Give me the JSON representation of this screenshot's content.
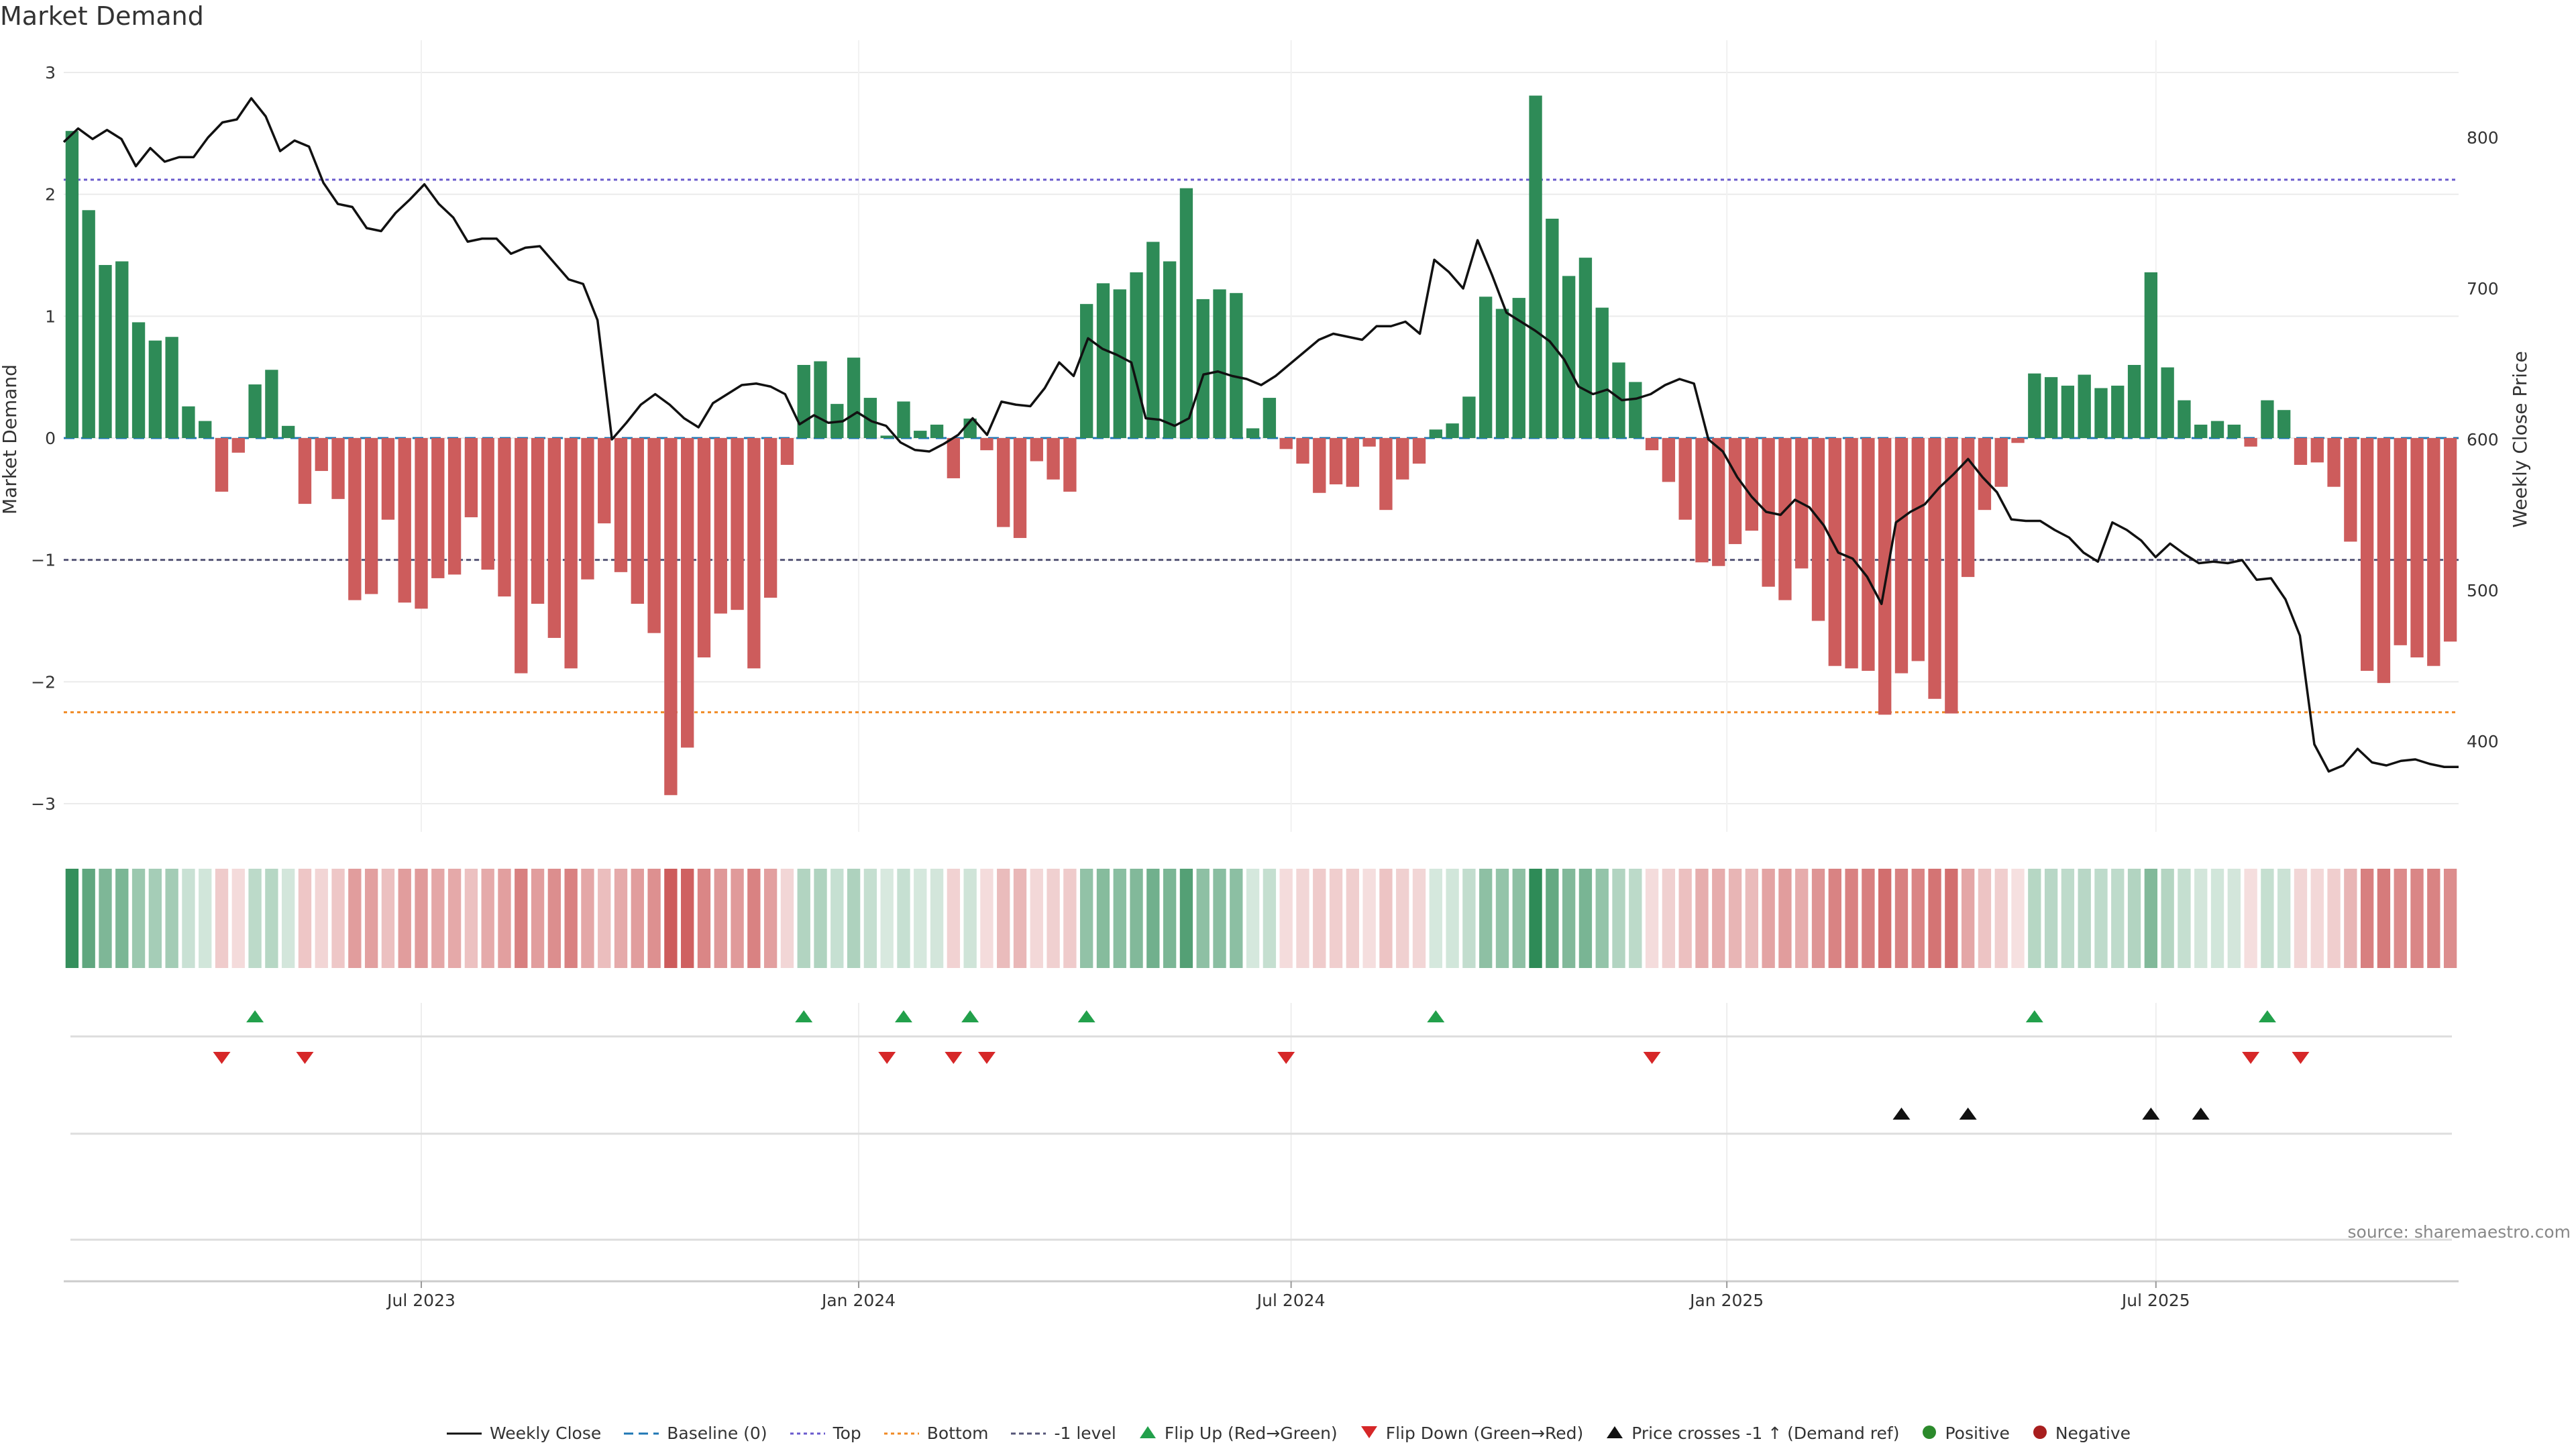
{
  "title": "Market Demand",
  "source": "source: sharemaestro.com",
  "colors": {
    "positive": "#2e8b57",
    "negative": "#cd5c5c",
    "price": "#111111",
    "top": "#6a5acd",
    "bottom": "#f08a24",
    "minus1": "#555577",
    "baseline": "#1f77b4",
    "flipUp": "#22a04b",
    "flipDown": "#d62728",
    "cross": "#111111"
  },
  "chart_data": {
    "type": "bar",
    "title": "Market Demand",
    "ylabel": "Market Demand",
    "ylabel_right": "Weekly Close Price",
    "ylim": [
      -3.2,
      3.0
    ],
    "ylim_right": [
      350,
      840
    ],
    "yticks": [
      3,
      2,
      1,
      0,
      -1,
      -2,
      -3
    ],
    "yticks_labels": [
      "3",
      "2",
      "1",
      "0",
      "−1",
      "−2",
      "−3"
    ],
    "yticks_right": [
      800,
      700,
      600,
      500,
      400
    ],
    "x_labels": [
      "Jul 2023",
      "Jan 2024",
      "Jul 2024",
      "Jan 2025",
      "Jul 2025"
    ],
    "x_label_index": [
      21.5,
      47.8,
      73.8,
      100.0,
      125.8
    ],
    "levels": {
      "top": 2.12,
      "bottom": -2.25,
      "minus_one": -1.0,
      "baseline": 0
    },
    "demand": [
      2.52,
      1.87,
      1.42,
      1.45,
      0.95,
      0.8,
      0.83,
      0.26,
      0.14,
      -0.44,
      -0.12,
      0.44,
      0.56,
      0.1,
      -0.54,
      -0.27,
      -0.5,
      -1.33,
      -1.28,
      -0.67,
      -1.35,
      -1.4,
      -1.15,
      -1.12,
      -0.65,
      -1.08,
      -1.3,
      -1.93,
      -1.36,
      -1.64,
      -1.89,
      -1.16,
      -0.7,
      -1.1,
      -1.36,
      -1.6,
      -2.93,
      -2.54,
      -1.8,
      -1.44,
      -1.41,
      -1.89,
      -1.31,
      -0.22,
      0.6,
      0.63,
      0.28,
      0.66,
      0.33,
      0.02,
      0.3,
      0.06,
      0.11,
      -0.33,
      0.16,
      -0.1,
      -0.73,
      -0.82,
      -0.19,
      -0.34,
      -0.44,
      1.1,
      1.27,
      1.22,
      1.36,
      1.61,
      1.45,
      2.05,
      1.14,
      1.22,
      1.19,
      0.08,
      0.33,
      -0.09,
      -0.21,
      -0.45,
      -0.38,
      -0.4,
      -0.07,
      -0.59,
      -0.34,
      -0.21,
      0.07,
      0.12,
      0.34,
      1.16,
      1.06,
      1.15,
      2.81,
      1.8,
      1.33,
      1.48,
      1.07,
      0.62,
      0.46,
      -0.1,
      -0.36,
      -0.67,
      -1.02,
      -1.05,
      -0.87,
      -0.76,
      -1.22,
      -1.33,
      -1.07,
      -1.5,
      -1.87,
      -1.89,
      -1.91,
      -2.27,
      -1.93,
      -1.83,
      -2.14,
      -2.26,
      -1.14,
      -0.59,
      -0.4,
      -0.04,
      0.53,
      0.5,
      0.43,
      0.52,
      0.41,
      0.43,
      0.6,
      1.36,
      0.58,
      0.31,
      0.11,
      0.14,
      0.11,
      -0.07,
      0.31,
      0.23,
      -0.22,
      -0.2,
      -0.4,
      -0.85,
      -1.91,
      -2.01,
      -1.7,
      -1.8,
      -1.87,
      -1.67
    ],
    "price": [
      797,
      806,
      799,
      805,
      799,
      781,
      793,
      784,
      787,
      787,
      800,
      810,
      812,
      826,
      814,
      791,
      798,
      794,
      770,
      756,
      754,
      740,
      738,
      750,
      759,
      769,
      756,
      747,
      731,
      733,
      733,
      723,
      727,
      728,
      717,
      706,
      703,
      679,
      600,
      611,
      623,
      630,
      623,
      614,
      608,
      624,
      630,
      636,
      637,
      635,
      630,
      610,
      616,
      611,
      612,
      618,
      612,
      609,
      598,
      593,
      592,
      597,
      603,
      614,
      603,
      625,
      623,
      622,
      634,
      651,
      642,
      667,
      660,
      656,
      651,
      614,
      613,
      609,
      614,
      643,
      645,
      642,
      640,
      636,
      642,
      650,
      658,
      666,
      670,
      668,
      666,
      675,
      675,
      678,
      670,
      719,
      711,
      700,
      732,
      709,
      684,
      678,
      672,
      665,
      653,
      635,
      630,
      633,
      626,
      627,
      630,
      636,
      640,
      637,
      600,
      592,
      575,
      562,
      552,
      550,
      560,
      555,
      543,
      525,
      521,
      509,
      491,
      545,
      552,
      557,
      568,
      577,
      587,
      575,
      565,
      547,
      546,
      546,
      540,
      535,
      525,
      519,
      545,
      540,
      533,
      522,
      531,
      524,
      518,
      519,
      518,
      520,
      507,
      508,
      494,
      470,
      398,
      380,
      384,
      395,
      386,
      384,
      387,
      388,
      385,
      383,
      383
    ],
    "flip_up_index": [
      11,
      44,
      50,
      54,
      61,
      82,
      118,
      132
    ],
    "flip_down_index": [
      9,
      14,
      49,
      53,
      55,
      73,
      95,
      131,
      134
    ],
    "cross_up_index": [
      110,
      114,
      125,
      128
    ],
    "legend": [
      {
        "label": "Weekly Close",
        "glyph": "line"
      },
      {
        "label": "Baseline (0)",
        "glyph": "dashed"
      },
      {
        "label": "Top",
        "glyph": "dotted-top"
      },
      {
        "label": "Bottom",
        "glyph": "dotted-bottom"
      },
      {
        "label": "-1 level",
        "glyph": "dotted-m1"
      },
      {
        "label": "Flip Up (Red→Green)",
        "glyph": "tri-up-green"
      },
      {
        "label": "Flip Down (Green→Red)",
        "glyph": "tri-down-red"
      },
      {
        "label": "Price crosses -1 ↑ (Demand ref)",
        "glyph": "tri-up-black"
      },
      {
        "label": "Positive",
        "glyph": "dot-green"
      },
      {
        "label": "Negative",
        "glyph": "dot-red"
      }
    ]
  }
}
